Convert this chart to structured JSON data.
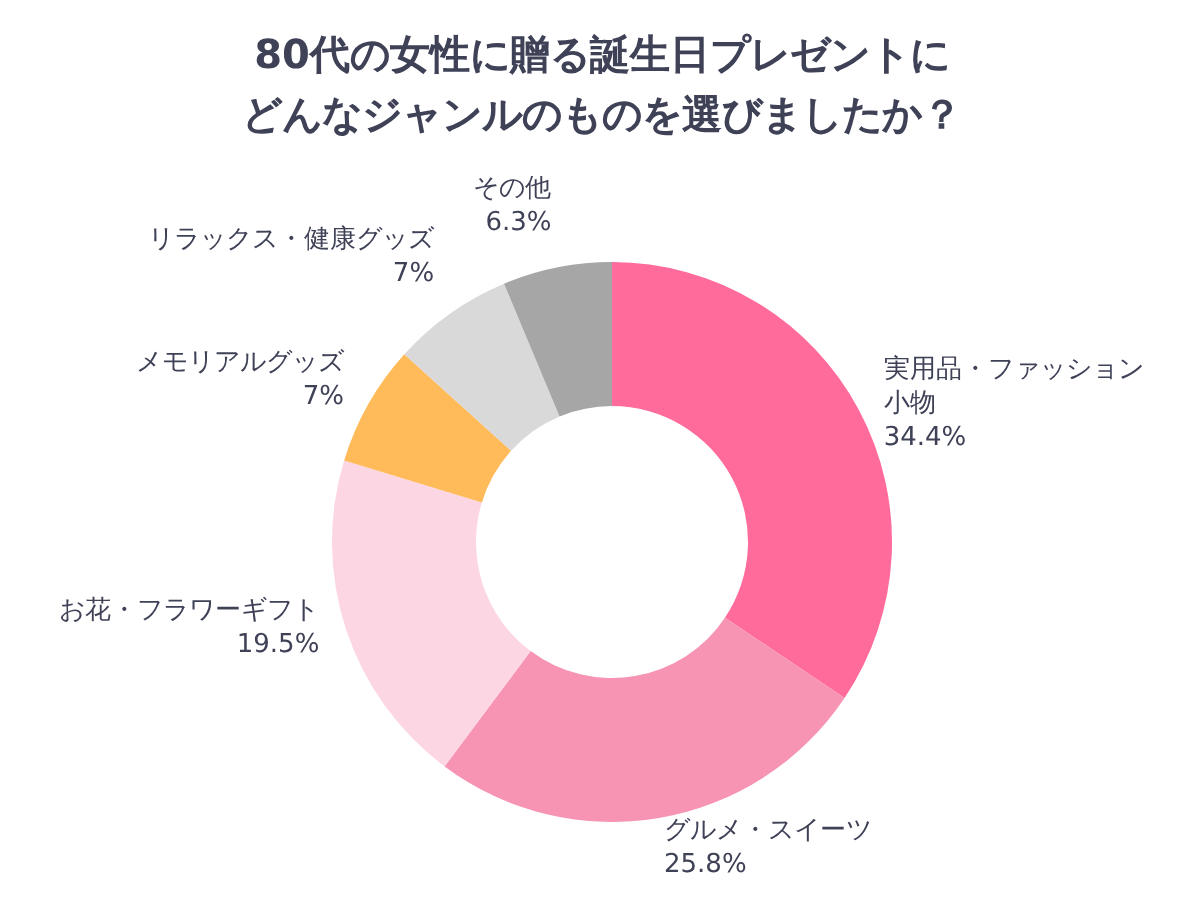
{
  "chart_data": {
    "type": "donut",
    "title": "80代の女性に贈る誕生日プレゼントにどんなジャンルのものを選びましたか？",
    "categories": [
      "実用品・ファッション小物",
      "グルメ・スイーツ",
      "お花・フラワーギフト",
      "メモリアルグッズ",
      "リラックス・健康グッズ",
      "その他"
    ],
    "values": [
      34.4,
      25.8,
      19.5,
      7,
      7,
      6.3
    ],
    "value_labels": [
      "34.4%",
      "25.8%",
      "19.5%",
      "7%",
      "7%",
      "6.3%"
    ],
    "colors": [
      "#ff6b9b",
      "#f794b3",
      "#fdd6e3",
      "#ffbb5a",
      "#d9d9d9",
      "#a6a6a6"
    ],
    "legend": false
  }
}
